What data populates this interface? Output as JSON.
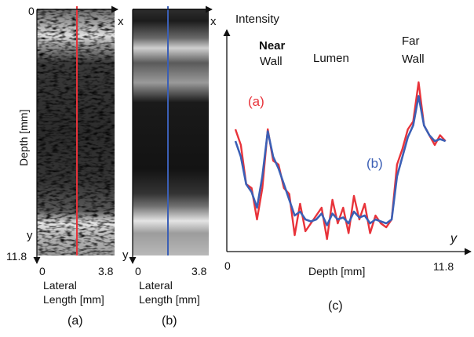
{
  "panel_a": {
    "y_top_tick": "0",
    "x_axis_label": "x",
    "y_axis_label": "y",
    "y_bottom_tick": "11.8",
    "depth_label": "Depth  [mm]",
    "x_tick_left": "0",
    "x_tick_right": "3.8",
    "lateral_line1": "Lateral",
    "lateral_line2": "Length [mm]",
    "caption": "(a)",
    "scanline_color": "#e8333a"
  },
  "panel_b": {
    "x_axis_label": "x",
    "y_axis_label": "y",
    "x_tick_left": "0",
    "x_tick_right": "3.8",
    "lateral_line1": "Lateral",
    "lateral_line2": "Length [mm]",
    "caption": "(b)",
    "scanline_color": "#3b5fb5"
  },
  "panel_c": {
    "y_axis_title": "Intensity",
    "near_wall_line1": "Near",
    "near_wall_line2": "Wall",
    "lumen_label": "Lumen",
    "far_wall_line1": "Far",
    "far_wall_line2": "Wall",
    "series_a_label": "(a)",
    "series_b_label": "(b)",
    "x_axis_var": "y",
    "origin_label": "0",
    "x_axis_label": "Depth [mm]",
    "x_max_label": "11.8",
    "caption": "(c)"
  },
  "chart_data": {
    "type": "line",
    "title": "",
    "xlabel": "Depth [mm]",
    "ylabel": "Intensity",
    "xlim": [
      0,
      11.8
    ],
    "x": [
      0.0,
      0.3,
      0.6,
      0.9,
      1.2,
      1.5,
      1.8,
      2.1,
      2.4,
      2.7,
      3.0,
      3.3,
      3.6,
      3.9,
      4.2,
      4.5,
      4.8,
      5.1,
      5.4,
      5.7,
      6.0,
      6.3,
      6.6,
      6.9,
      7.2,
      7.5,
      7.8,
      8.1,
      8.4,
      8.7,
      9.0,
      9.3,
      9.6,
      9.9,
      10.2,
      10.5,
      10.8,
      11.1,
      11.4,
      11.7
    ],
    "series": [
      {
        "name": "(a)",
        "color": "#e8333a",
        "values": [
          0.58,
          0.5,
          0.3,
          0.28,
          0.12,
          0.28,
          0.58,
          0.42,
          0.4,
          0.28,
          0.25,
          0.04,
          0.2,
          0.06,
          0.1,
          0.14,
          0.18,
          0.02,
          0.22,
          0.1,
          0.18,
          0.05,
          0.24,
          0.12,
          0.2,
          0.05,
          0.14,
          0.1,
          0.08,
          0.12,
          0.4,
          0.48,
          0.58,
          0.62,
          0.82,
          0.6,
          0.55,
          0.5,
          0.55,
          0.52
        ]
      },
      {
        "name": "(b)",
        "color": "#3b5fb5",
        "values": [
          0.52,
          0.44,
          0.3,
          0.26,
          0.18,
          0.34,
          0.57,
          0.44,
          0.38,
          0.3,
          0.22,
          0.14,
          0.16,
          0.12,
          0.11,
          0.12,
          0.15,
          0.09,
          0.15,
          0.12,
          0.13,
          0.1,
          0.16,
          0.13,
          0.14,
          0.1,
          0.12,
          0.11,
          0.1,
          0.12,
          0.34,
          0.44,
          0.54,
          0.6,
          0.75,
          0.6,
          0.55,
          0.52,
          0.53,
          0.52
        ]
      }
    ]
  }
}
